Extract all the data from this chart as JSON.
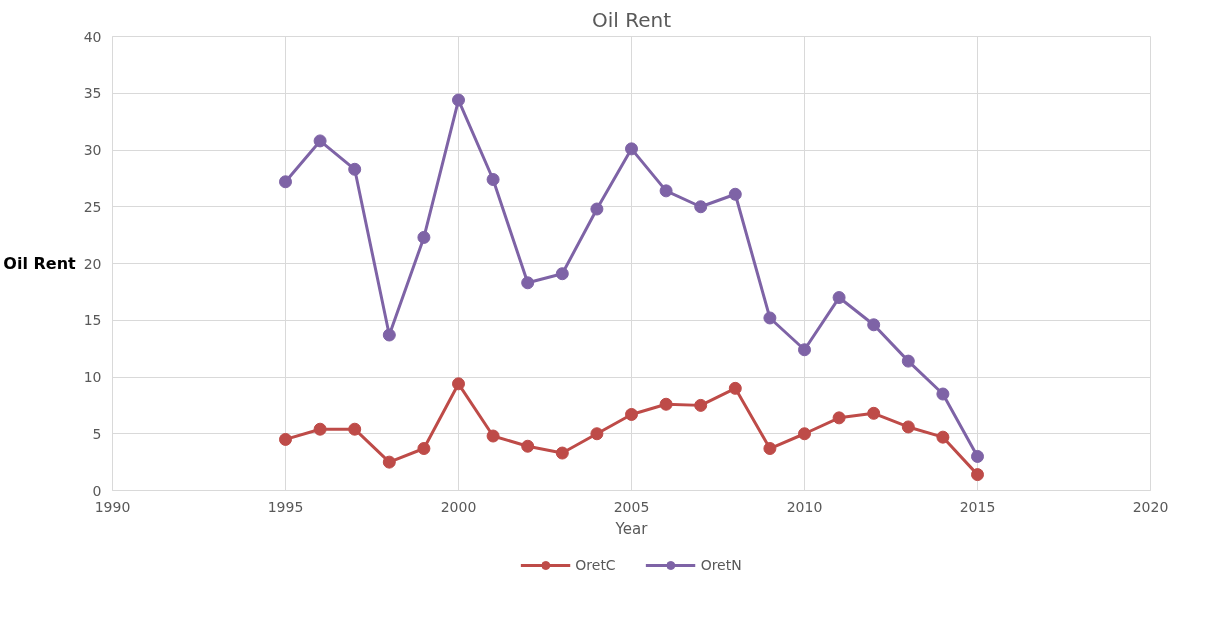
{
  "chart_data": {
    "type": "line",
    "title": "Oil Rent",
    "xlabel": "Year",
    "ylabel": "Oil Rent",
    "x": [
      1995,
      1996,
      1997,
      1998,
      1999,
      2000,
      2001,
      2002,
      2003,
      2004,
      2005,
      2006,
      2007,
      2008,
      2009,
      2010,
      2011,
      2012,
      2013,
      2014,
      2015
    ],
    "series": [
      {
        "name": "OretC",
        "color": "#be4b48",
        "values": [
          4.5,
          5.4,
          5.4,
          2.5,
          3.7,
          9.4,
          4.8,
          3.9,
          3.3,
          5.0,
          6.7,
          7.6,
          7.5,
          9.0,
          3.7,
          5.0,
          6.4,
          6.8,
          5.6,
          4.7,
          1.4
        ]
      },
      {
        "name": "OretN",
        "color": "#7e63a6",
        "values": [
          27.2,
          30.8,
          28.3,
          13.7,
          22.3,
          34.4,
          27.4,
          18.3,
          19.1,
          24.8,
          30.1,
          26.4,
          25.0,
          26.1,
          15.2,
          12.4,
          17.0,
          14.6,
          11.4,
          8.5,
          3.0
        ]
      }
    ],
    "xlim": [
      1990,
      2020
    ],
    "xticks": [
      1990,
      1995,
      2000,
      2005,
      2010,
      2015,
      2020
    ],
    "ylim": [
      0,
      40
    ],
    "yticks": [
      0,
      5,
      10,
      15,
      20,
      25,
      30,
      35,
      40
    ],
    "grid": true,
    "legend": "bottom",
    "marker": "circle",
    "line_style": "solid"
  }
}
